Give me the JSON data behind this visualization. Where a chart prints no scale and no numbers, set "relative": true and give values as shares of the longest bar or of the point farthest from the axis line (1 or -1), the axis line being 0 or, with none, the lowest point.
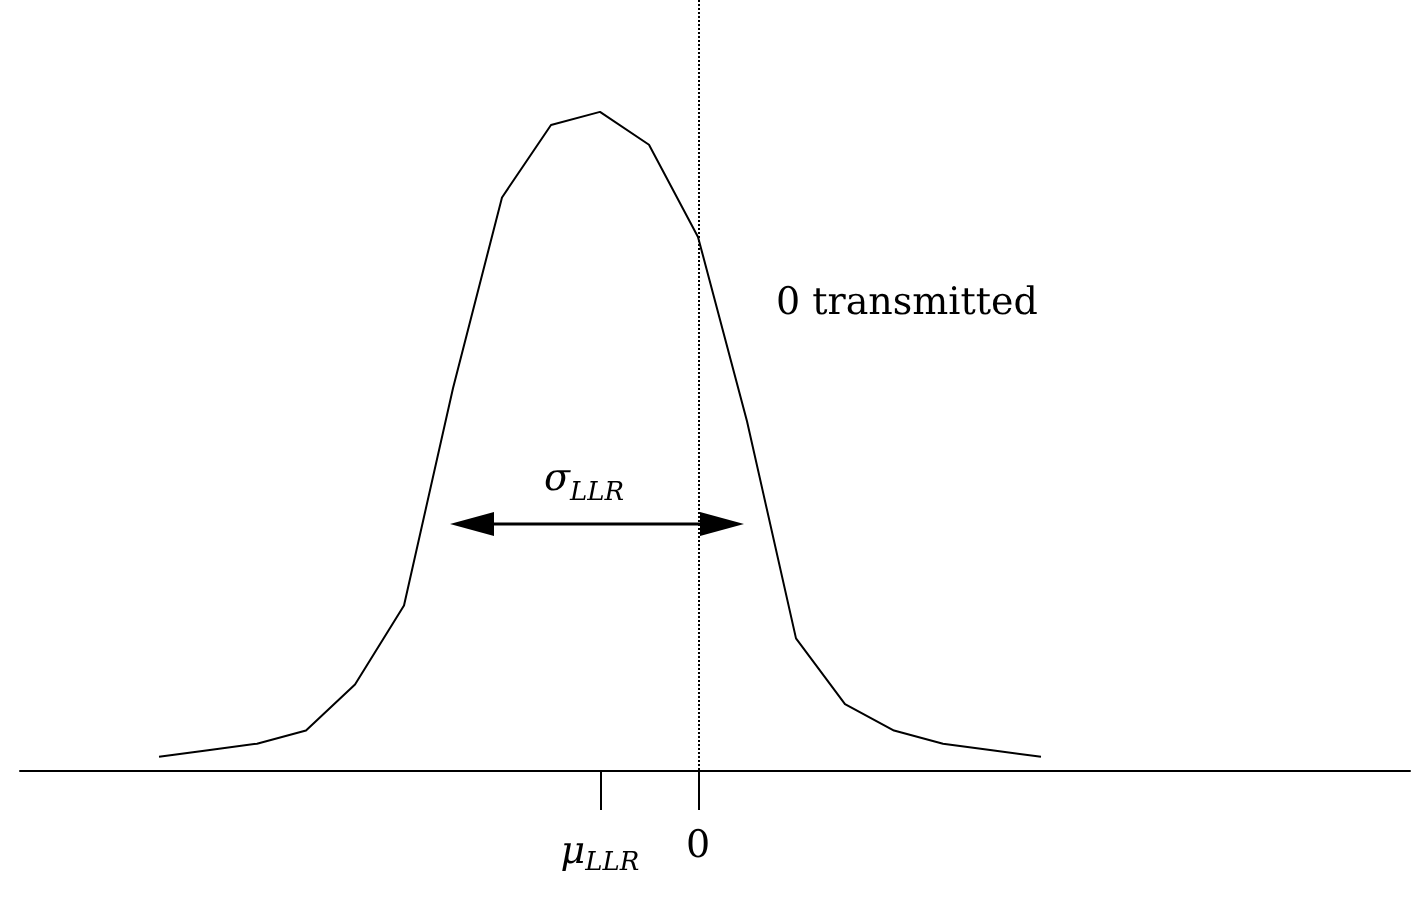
{
  "chart_data": {
    "type": "line",
    "relative": true,
    "categories": [
      null,
      null,
      null,
      null,
      null,
      null,
      null,
      null,
      null,
      "μ$_{LLR}$",
      null,
      "0",
      null,
      null,
      null,
      null,
      null,
      null,
      null
    ],
    "series": [
      {
        "color": "#000000",
        "values": [
          0.02,
          0.03,
          0.04,
          0.06,
          0.13,
          0.25,
          0.58,
          0.87,
          0.98,
          1,
          0.95,
          0.81,
          0.53,
          0.2,
          0.1,
          0.06,
          0.04,
          0.03,
          0.02
        ]
      }
    ],
    "ref_lines": [
      {
        "axis": "x",
        "value": "0",
        "color": "#000000",
        "line_style": "dotted"
      }
    ],
    "annotations": [
      "0 transmitted",
      "σ$_{LLR}$"
    ],
    "line_style": "solid"
  }
}
